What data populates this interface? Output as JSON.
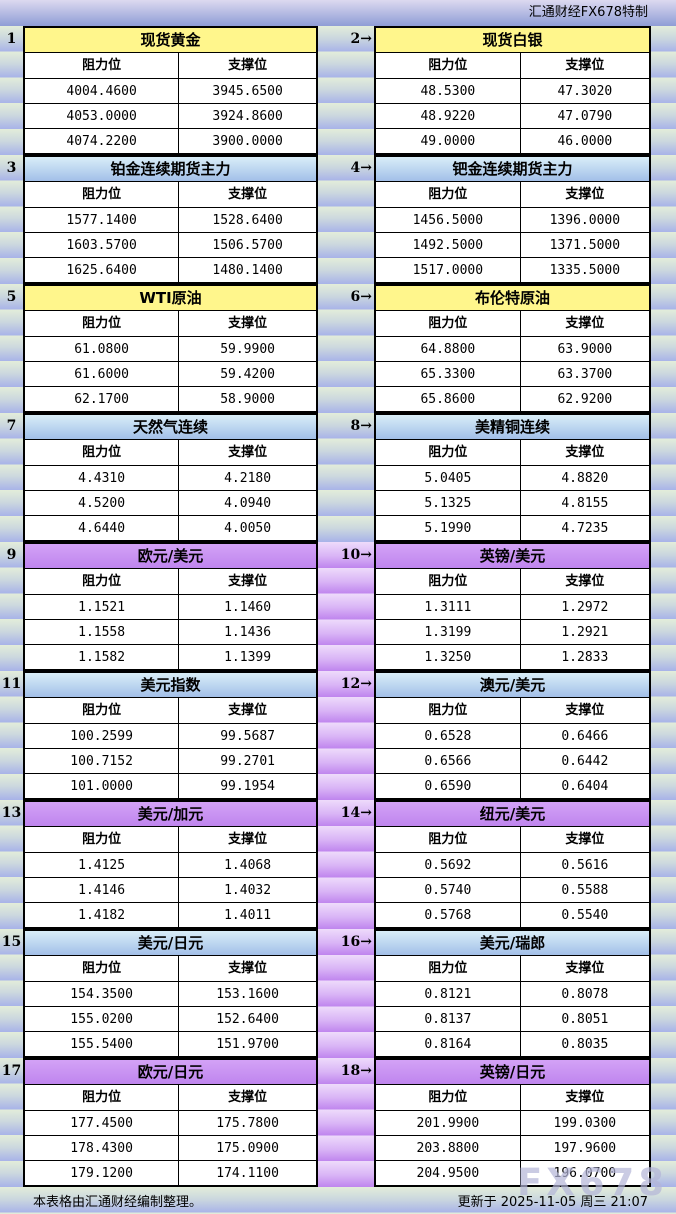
{
  "header": {
    "brand": "汇通财经FX678特制"
  },
  "columns": {
    "resistance": "阻力位",
    "support": "支撑位"
  },
  "groups": [
    {
      "spacer_theme": "green",
      "left": {
        "num": "1",
        "title": "现货黄金",
        "theme": "yellow",
        "rows": [
          [
            "4004.4600",
            "3945.6500"
          ],
          [
            "4053.0000",
            "3924.8600"
          ],
          [
            "4074.2200",
            "3900.0000"
          ]
        ]
      },
      "right": {
        "num": "2→",
        "title": "现货白银",
        "theme": "yellow",
        "rows": [
          [
            "48.5300",
            "47.3020"
          ],
          [
            "48.9220",
            "47.0790"
          ],
          [
            "49.0000",
            "46.0000"
          ]
        ]
      }
    },
    {
      "spacer_theme": "green",
      "left": {
        "num": "3",
        "title": "铂金连续期货主力",
        "theme": "blue",
        "rows": [
          [
            "1577.1400",
            "1528.6400"
          ],
          [
            "1603.5700",
            "1506.5700"
          ],
          [
            "1625.6400",
            "1480.1400"
          ]
        ]
      },
      "right": {
        "num": "4→",
        "title": "钯金连续期货主力",
        "theme": "blue",
        "rows": [
          [
            "1456.5000",
            "1396.0000"
          ],
          [
            "1492.5000",
            "1371.5000"
          ],
          [
            "1517.0000",
            "1335.5000"
          ]
        ]
      }
    },
    {
      "spacer_theme": "green",
      "left": {
        "num": "5",
        "title": "WTI原油",
        "theme": "yellow",
        "rows": [
          [
            "61.0800",
            "59.9900"
          ],
          [
            "61.6000",
            "59.4200"
          ],
          [
            "62.1700",
            "58.9000"
          ]
        ]
      },
      "right": {
        "num": "6→",
        "title": "布伦特原油",
        "theme": "yellow",
        "rows": [
          [
            "64.8800",
            "63.9000"
          ],
          [
            "65.3300",
            "63.3700"
          ],
          [
            "65.8600",
            "62.9200"
          ]
        ]
      }
    },
    {
      "spacer_theme": "green",
      "left": {
        "num": "7",
        "title": "天然气连续",
        "theme": "blue",
        "rows": [
          [
            "4.4310",
            "4.2180"
          ],
          [
            "4.5200",
            "4.0940"
          ],
          [
            "4.6440",
            "4.0050"
          ]
        ]
      },
      "right": {
        "num": "8→",
        "title": "美精铜连续",
        "theme": "blue",
        "rows": [
          [
            "5.0405",
            "4.8820"
          ],
          [
            "5.1325",
            "4.8155"
          ],
          [
            "5.1990",
            "4.7235"
          ]
        ]
      }
    },
    {
      "spacer_theme": "purple",
      "left": {
        "num": "9",
        "title": "欧元/美元",
        "theme": "purple",
        "rows": [
          [
            "1.1521",
            "1.1460"
          ],
          [
            "1.1558",
            "1.1436"
          ],
          [
            "1.1582",
            "1.1399"
          ]
        ]
      },
      "right": {
        "num": "10→",
        "title": "英镑/美元",
        "theme": "purple",
        "rows": [
          [
            "1.3111",
            "1.2972"
          ],
          [
            "1.3199",
            "1.2921"
          ],
          [
            "1.3250",
            "1.2833"
          ]
        ]
      }
    },
    {
      "spacer_theme": "purple",
      "left": {
        "num": "11",
        "title": "美元指数",
        "theme": "blue",
        "rows": [
          [
            "100.2599",
            "99.5687"
          ],
          [
            "100.7152",
            "99.2701"
          ],
          [
            "101.0000",
            "99.1954"
          ]
        ]
      },
      "right": {
        "num": "12→",
        "title": "澳元/美元",
        "theme": "blue",
        "rows": [
          [
            "0.6528",
            "0.6466"
          ],
          [
            "0.6566",
            "0.6442"
          ],
          [
            "0.6590",
            "0.6404"
          ]
        ]
      }
    },
    {
      "spacer_theme": "purple",
      "left": {
        "num": "13",
        "title": "美元/加元",
        "theme": "purple",
        "rows": [
          [
            "1.4125",
            "1.4068"
          ],
          [
            "1.4146",
            "1.4032"
          ],
          [
            "1.4182",
            "1.4011"
          ]
        ]
      },
      "right": {
        "num": "14→",
        "title": "纽元/美元",
        "theme": "purple",
        "rows": [
          [
            "0.5692",
            "0.5616"
          ],
          [
            "0.5740",
            "0.5588"
          ],
          [
            "0.5768",
            "0.5540"
          ]
        ]
      }
    },
    {
      "spacer_theme": "purple",
      "left": {
        "num": "15",
        "title": "美元/日元",
        "theme": "blue",
        "rows": [
          [
            "154.3500",
            "153.1600"
          ],
          [
            "155.0200",
            "152.6400"
          ],
          [
            "155.5400",
            "151.9700"
          ]
        ]
      },
      "right": {
        "num": "16→",
        "title": "美元/瑞郎",
        "theme": "blue",
        "rows": [
          [
            "0.8121",
            "0.8078"
          ],
          [
            "0.8137",
            "0.8051"
          ],
          [
            "0.8164",
            "0.8035"
          ]
        ]
      }
    },
    {
      "spacer_theme": "purple",
      "left": {
        "num": "17",
        "title": "欧元/日元",
        "theme": "purple",
        "rows": [
          [
            "177.4500",
            "175.7800"
          ],
          [
            "178.4300",
            "175.0900"
          ],
          [
            "179.1200",
            "174.1100"
          ]
        ]
      },
      "right": {
        "num": "18→",
        "title": "英镑/日元",
        "theme": "purple",
        "rows": [
          [
            "201.9900",
            "199.0300"
          ],
          [
            "203.8800",
            "197.9600"
          ],
          [
            "204.9500",
            "196.0700"
          ]
        ]
      }
    }
  ],
  "footer": {
    "left": "本表格由汇通财经编制整理。",
    "right": "更新于 2025-11-05 周三 21:07",
    "watermark": "FX678"
  },
  "colors": {
    "yellow_title": "#fff68c",
    "blue_title_top": "#d9eef8",
    "blue_title_bottom": "#a2bfe8",
    "purple_title": "#c48ef0",
    "band_green": "#e3edda",
    "band_blue": "#a8b3e8",
    "band_purple_light": "#eedbfb",
    "band_purple_dark": "#bf85ee"
  }
}
